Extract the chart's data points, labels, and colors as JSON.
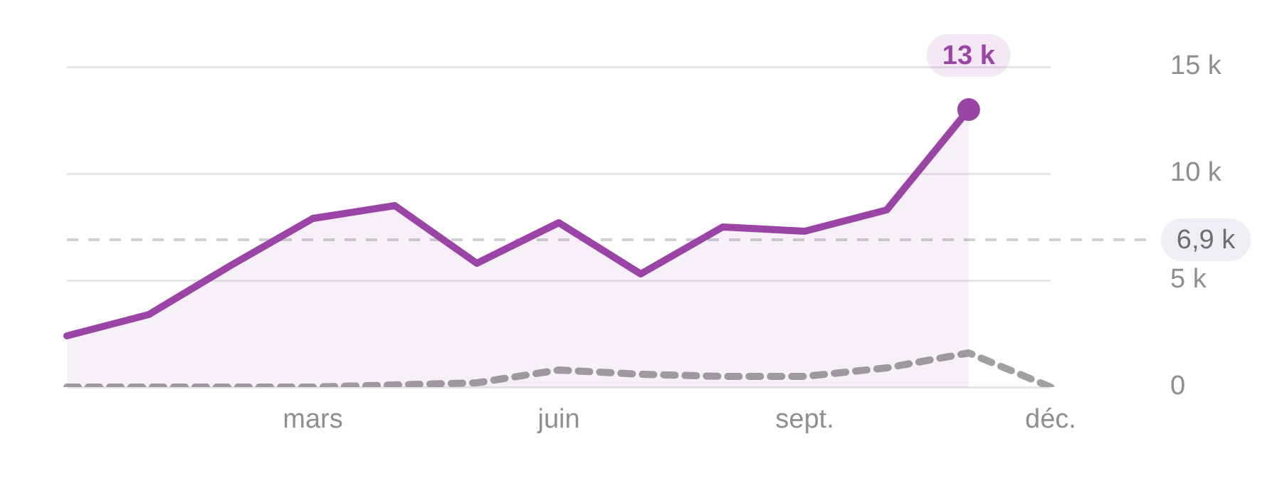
{
  "chart_data": {
    "type": "line",
    "categories": [
      null,
      null,
      null,
      "mars",
      null,
      null,
      "juin",
      null,
      null,
      "sept.",
      null,
      null,
      "déc."
    ],
    "ylim": [
      0,
      15
    ],
    "yticks": [
      {
        "value": 0,
        "label": "0"
      },
      {
        "value": 5,
        "label": "5 k"
      },
      {
        "value": 10,
        "label": "10 k"
      },
      {
        "value": 15,
        "label": "15 k"
      }
    ],
    "grid": "y",
    "series": [
      {
        "type": "area",
        "color": "#9a44a6",
        "line_style": "solid",
        "values": [
          2.4,
          3.4,
          5.7,
          7.9,
          8.5,
          5.8,
          7.7,
          5.3,
          7.5,
          7.3,
          8.3,
          13,
          null
        ],
        "value_labels": [
          null,
          null,
          null,
          null,
          null,
          null,
          null,
          null,
          null,
          null,
          null,
          "13 k",
          null
        ]
      },
      {
        "color": "#a0a0a0",
        "line_style": "dashed",
        "values": [
          0,
          0,
          0,
          0,
          0.1,
          0.2,
          0.8,
          0.6,
          0.5,
          0.5,
          0.9,
          1.6,
          0
        ]
      }
    ],
    "ref_lines": [
      {
        "axis": "y",
        "value": 6.9,
        "label": "6,9 k",
        "color": "#d0d0d4",
        "line_style": "dashed"
      }
    ]
  }
}
